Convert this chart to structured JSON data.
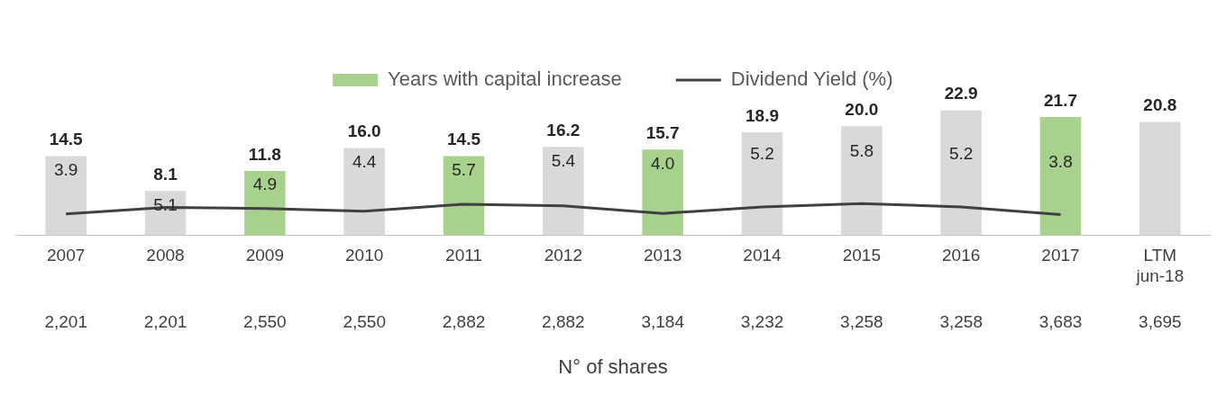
{
  "chart_data": {
    "type": "bar",
    "stacked": true,
    "xlabel": "N° of shares",
    "legend": "top",
    "grid": false,
    "categories": [
      "2007",
      "2008",
      "2009",
      "2010",
      "2011",
      "2012",
      "2013",
      "2014",
      "2015",
      "2016",
      "2017",
      "LTM jun-18"
    ],
    "series": [
      {
        "name": "Years with capital increase",
        "color": "#a9d18e",
        "values": [
          null,
          null,
          11.8,
          null,
          14.5,
          null,
          15.7,
          null,
          null,
          null,
          21.7,
          null
        ],
        "value_labels": [
          null,
          null,
          "11.8",
          null,
          "14.5",
          null,
          "15.7",
          null,
          null,
          null,
          "21.7",
          null
        ]
      },
      {
        "color": "#d9d9d9",
        "values": [
          14.5,
          8.1,
          null,
          16.0,
          null,
          16.2,
          null,
          18.9,
          20.0,
          22.9,
          null,
          20.8
        ],
        "value_labels": [
          "14.5",
          "8.1",
          null,
          "16.0",
          null,
          "16.2",
          null,
          "18.9",
          "20.0",
          "22.9",
          null,
          "20.8"
        ]
      },
      {
        "name": "Dividend Yield (%)",
        "type": "line",
        "color": "#404040",
        "values": [
          3.9,
          5.1,
          4.9,
          4.4,
          5.7,
          5.4,
          4.0,
          5.2,
          5.8,
          5.2,
          3.8,
          null
        ],
        "value_labels": [
          "3.9",
          "5.1",
          "4.9",
          "4.4",
          "5.7",
          "5.4",
          "4.0",
          "5.2",
          "5.8",
          "5.2",
          "3.8",
          null
        ]
      }
    ],
    "annotations": [
      "2,201",
      "2,201",
      "2,550",
      "2,550",
      "2,882",
      "2,882",
      "3,184",
      "3,232",
      "3,258",
      "3,258",
      "3,683",
      "3,695"
    ]
  }
}
